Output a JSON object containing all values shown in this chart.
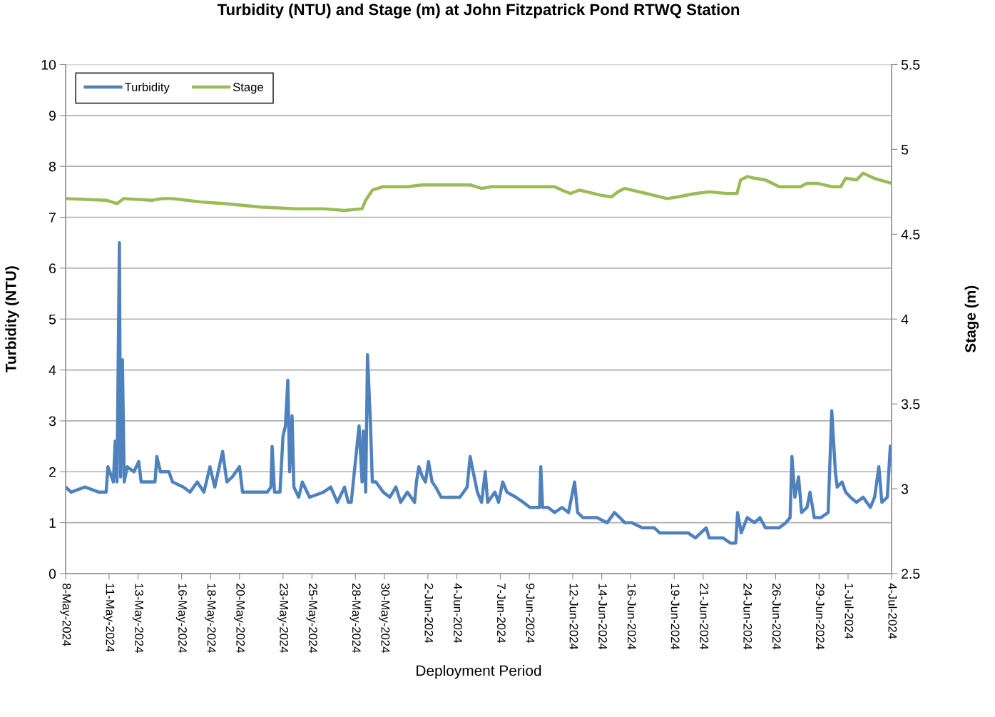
{
  "chart_data": {
    "type": "line",
    "title": "Turbidity (NTU) and Stage (m) at John Fitzpatrick Pond RTWQ Station",
    "xlabel": "Deployment Period",
    "ylabel": "Turbidity (NTU)",
    "y2label": "Stage (m)",
    "xlim": [
      "2024-05-08",
      "2024-07-04"
    ],
    "xticks": [
      {
        "value": "2024-05-08",
        "label": "8-May-2024"
      },
      {
        "value": "2024-05-11",
        "label": "11-May-2024"
      },
      {
        "value": "2024-05-13",
        "label": "13-May-2024"
      },
      {
        "value": "2024-05-16",
        "label": "16-May-2024"
      },
      {
        "value": "2024-05-18",
        "label": "18-May-2024"
      },
      {
        "value": "2024-05-20",
        "label": "20-May-2024"
      },
      {
        "value": "2024-05-23",
        "label": "23-May-2024"
      },
      {
        "value": "2024-05-25",
        "label": "25-May-2024"
      },
      {
        "value": "2024-05-28",
        "label": "28-May-2024"
      },
      {
        "value": "2024-05-30",
        "label": "30-May-2024"
      },
      {
        "value": "2024-06-02",
        "label": "2-Jun-2024"
      },
      {
        "value": "2024-06-04",
        "label": "4-Jun-2024"
      },
      {
        "value": "2024-06-07",
        "label": "7-Jun-2024"
      },
      {
        "value": "2024-06-09",
        "label": "9-Jun-2024"
      },
      {
        "value": "2024-06-12",
        "label": "12-Jun-2024"
      },
      {
        "value": "2024-06-14",
        "label": "14-Jun-2024"
      },
      {
        "value": "2024-06-16",
        "label": "16-Jun-2024"
      },
      {
        "value": "2024-06-19",
        "label": "19-Jun-2024"
      },
      {
        "value": "2024-06-21",
        "label": "21-Jun-2024"
      },
      {
        "value": "2024-06-24",
        "label": "24-Jun-2024"
      },
      {
        "value": "2024-06-26",
        "label": "26-Jun-2024"
      },
      {
        "value": "2024-06-29",
        "label": "29-Jun-2024"
      },
      {
        "value": "2024-07-01",
        "label": "1-Jul-2024"
      },
      {
        "value": "2024-07-04",
        "label": "4-Jul-2024"
      }
    ],
    "ylim": [
      0,
      10
    ],
    "yticks": [
      0,
      1,
      2,
      3,
      4,
      5,
      6,
      7,
      8,
      9,
      10
    ],
    "y2lim": [
      2.5,
      5.5
    ],
    "y2ticks": [
      2.5,
      3,
      3.5,
      4,
      4.5,
      5,
      5.5
    ],
    "grid": "y",
    "legend": "top left",
    "marker": "none",
    "line_style": "solid",
    "series": [
      {
        "name": "Turbidity",
        "color": "#4f81bd",
        "axis": "y",
        "x": [
          "2024-05-08T00:00",
          "2024-05-08T09:00",
          "2024-05-09T08:00",
          "2024-05-10T07:00",
          "2024-05-10T19:00",
          "2024-05-10T22:00",
          "2024-05-11T07:00",
          "2024-05-11T10:00",
          "2024-05-11T13:00",
          "2024-05-11T17:00",
          "2024-05-11T19:00",
          "2024-05-11T22:00",
          "2024-05-12T01:00",
          "2024-05-12T06:00",
          "2024-05-12T17:00",
          "2024-05-13T01:00",
          "2024-05-13T05:00",
          "2024-05-14T04:00",
          "2024-05-14T07:00",
          "2024-05-14T13:00",
          "2024-05-15T03:00",
          "2024-05-15T09:00",
          "2024-05-16T03:00",
          "2024-05-16T14:00",
          "2024-05-17T02:00",
          "2024-05-17T13:00",
          "2024-05-17T23:00",
          "2024-05-18T07:00",
          "2024-05-18T20:00",
          "2024-05-19T03:00",
          "2024-05-19T12:00",
          "2024-05-20T00:00",
          "2024-05-20T05:00",
          "2024-05-20T23:00",
          "2024-05-21T22:00",
          "2024-05-22T04:00",
          "2024-05-22T06:00",
          "2024-05-22T10:00",
          "2024-05-22T19:00",
          "2024-05-23T00:00",
          "2024-05-23T04:00",
          "2024-05-23T08:00",
          "2024-05-23T11:00",
          "2024-05-23T15:00",
          "2024-05-23T18:00",
          "2024-05-24T02:00",
          "2024-05-24T08:00",
          "2024-05-24T20:00",
          "2024-05-25T19:00",
          "2024-05-26T07:00",
          "2024-05-26T18:00",
          "2024-05-27T06:00",
          "2024-05-27T12:00",
          "2024-05-27T17:00",
          "2024-05-28T06:00",
          "2024-05-28T11:00",
          "2024-05-28T13:00",
          "2024-05-28T17:00",
          "2024-05-28T20:00",
          "2024-05-29T01:00",
          "2024-05-29T04:00",
          "2024-05-29T10:00",
          "2024-05-29T22:00",
          "2024-05-30T09:00",
          "2024-05-30T19:00",
          "2024-05-31T03:00",
          "2024-05-31T14:00",
          "2024-06-01T02:00",
          "2024-06-01T05:00",
          "2024-06-01T09:00",
          "2024-06-01T15:00",
          "2024-06-01T20:00",
          "2024-06-02T01:00",
          "2024-06-02T07:00",
          "2024-06-02T13:00",
          "2024-06-02T22:00",
          "2024-06-03T06:00",
          "2024-06-03T18:00",
          "2024-06-04T05:00",
          "2024-06-04T17:00",
          "2024-06-04T22:00",
          "2024-06-05T03:00",
          "2024-06-05T10:00",
          "2024-06-05T17:00",
          "2024-06-05T23:00",
          "2024-06-06T03:00",
          "2024-06-06T15:00",
          "2024-06-06T21:00",
          "2024-06-07T04:00",
          "2024-06-07T11:00",
          "2024-06-08T02:00",
          "2024-06-08T14:00",
          "2024-06-09T01:00",
          "2024-06-09T17:00",
          "2024-06-09T19:00",
          "2024-06-09T22:00",
          "2024-06-10T07:00",
          "2024-06-10T18:00",
          "2024-06-11T06:00",
          "2024-06-11T17:00",
          "2024-06-12T03:00",
          "2024-06-12T08:00",
          "2024-06-12T17:00",
          "2024-06-13T16:00",
          "2024-06-14T09:00",
          "2024-06-14T21:00",
          "2024-06-15T06:00",
          "2024-06-15T14:00",
          "2024-06-16T02:00",
          "2024-06-16T19:00",
          "2024-06-17T15:00",
          "2024-06-18T00:00",
          "2024-06-19T00:00",
          "2024-06-19T23:00",
          "2024-06-20T11:00",
          "2024-06-21T05:00",
          "2024-06-21T10:00",
          "2024-06-22T09:00",
          "2024-06-22T21:00",
          "2024-06-23T06:00",
          "2024-06-23T09:00",
          "2024-06-23T15:00",
          "2024-06-24T01:00",
          "2024-06-24T13:00",
          "2024-06-24T22:00",
          "2024-06-25T07:00",
          "2024-06-25T18:00",
          "2024-06-26T06:00",
          "2024-06-26T17:00",
          "2024-06-27T00:00",
          "2024-06-27T03:00",
          "2024-06-27T08:00",
          "2024-06-27T14:00",
          "2024-06-27T19:00",
          "2024-06-28T04:00",
          "2024-06-28T09:00",
          "2024-06-28T16:00",
          "2024-06-29T03:00",
          "2024-06-29T15:00",
          "2024-06-29T21:00",
          "2024-06-30T03:00",
          "2024-06-30T06:00",
          "2024-06-30T14:00",
          "2024-06-30T20:00",
          "2024-07-01T04:00",
          "2024-07-01T14:00",
          "2024-07-02T01:00",
          "2024-07-02T13:00",
          "2024-07-02T20:00",
          "2024-07-03T03:00",
          "2024-07-03T08:00",
          "2024-07-03T17:00",
          "2024-07-03T22:00"
        ],
        "values": [
          1.7,
          1.6,
          1.7,
          1.6,
          1.6,
          2.1,
          1.8,
          2.6,
          1.8,
          6.5,
          1.9,
          4.2,
          1.8,
          2.1,
          2.0,
          2.2,
          1.8,
          1.8,
          2.3,
          2.0,
          2.0,
          1.8,
          1.7,
          1.6,
          1.8,
          1.6,
          2.1,
          1.7,
          2.4,
          1.8,
          1.9,
          2.1,
          1.6,
          1.6,
          1.6,
          1.7,
          2.5,
          1.6,
          1.6,
          2.7,
          2.9,
          3.8,
          2.0,
          3.1,
          1.7,
          1.5,
          1.8,
          1.5,
          1.6,
          1.7,
          1.4,
          1.7,
          1.4,
          1.4,
          2.9,
          1.8,
          2.8,
          1.6,
          4.3,
          2.9,
          1.8,
          1.8,
          1.6,
          1.5,
          1.7,
          1.4,
          1.6,
          1.4,
          1.8,
          2.1,
          1.9,
          1.8,
          2.2,
          1.8,
          1.7,
          1.5,
          1.5,
          1.5,
          1.5,
          1.7,
          2.3,
          2.0,
          1.6,
          1.4,
          2.0,
          1.4,
          1.6,
          1.4,
          1.8,
          1.6,
          1.5,
          1.4,
          1.3,
          1.3,
          2.1,
          1.3,
          1.3,
          1.2,
          1.3,
          1.2,
          1.8,
          1.2,
          1.1,
          1.1,
          1.0,
          1.2,
          1.1,
          1.0,
          1.0,
          0.9,
          0.9,
          0.8,
          0.8,
          0.8,
          0.7,
          0.9,
          0.7,
          0.7,
          0.6,
          0.6,
          1.2,
          0.8,
          1.1,
          1.0,
          1.1,
          0.9,
          0.9,
          0.9,
          1.0,
          1.1,
          2.3,
          1.5,
          1.9,
          1.2,
          1.3,
          1.6,
          1.1,
          1.1,
          1.2,
          3.2,
          2.0,
          1.7,
          1.8,
          1.6,
          1.5,
          1.4,
          1.5,
          1.3,
          1.5,
          2.1,
          1.4,
          1.5,
          2.5
        ]
      },
      {
        "name": "Stage",
        "color": "#9bbb59",
        "axis": "y2",
        "x": [
          "2024-05-08T00:00",
          "2024-05-10T19:00",
          "2024-05-11T13:00",
          "2024-05-12T00:00",
          "2024-05-13T23:00",
          "2024-05-14T16:00",
          "2024-05-15T09:00",
          "2024-05-17T08:00",
          "2024-05-19T01:00",
          "2024-05-21T11:00",
          "2024-05-23T21:00",
          "2024-05-25T19:00",
          "2024-05-27T06:00",
          "2024-05-28T11:00",
          "2024-05-28T17:00",
          "2024-05-29T04:00",
          "2024-05-29T22:00",
          "2024-05-31T14:00",
          "2024-06-01T14:00",
          "2024-06-04T23:00",
          "2024-06-05T17:00",
          "2024-06-06T09:00",
          "2024-06-10T18:00",
          "2024-06-11T06:00",
          "2024-06-11T20:00",
          "2024-06-12T11:00",
          "2024-06-13T22:00",
          "2024-06-14T16:00",
          "2024-06-15T03:00",
          "2024-06-15T14:00",
          "2024-06-17T02:00",
          "2024-06-18T12:00",
          "2024-06-19T06:00",
          "2024-06-20T11:00",
          "2024-06-21T10:00",
          "2024-06-22T15:00",
          "2024-06-23T08:00",
          "2024-06-23T14:00",
          "2024-06-24T01:00",
          "2024-06-24T13:00",
          "2024-06-25T07:00",
          "2024-06-26T06:00",
          "2024-06-27T17:00",
          "2024-06-28T04:00",
          "2024-06-28T21:00",
          "2024-06-29T21:00",
          "2024-06-30T12:00",
          "2024-06-30T20:00",
          "2024-07-01T14:00",
          "2024-07-02T01:00",
          "2024-07-02T19:00",
          "2024-07-04T00:00"
        ],
        "values": [
          4.71,
          4.7,
          4.68,
          4.71,
          4.7,
          4.71,
          4.71,
          4.69,
          4.68,
          4.66,
          4.65,
          4.65,
          4.64,
          4.65,
          4.7,
          4.76,
          4.78,
          4.78,
          4.79,
          4.79,
          4.77,
          4.78,
          4.78,
          4.76,
          4.74,
          4.76,
          4.73,
          4.72,
          4.75,
          4.77,
          4.74,
          4.71,
          4.72,
          4.74,
          4.75,
          4.74,
          4.74,
          4.82,
          4.84,
          4.83,
          4.82,
          4.78,
          4.78,
          4.8,
          4.8,
          4.78,
          4.78,
          4.83,
          4.82,
          4.86,
          4.83,
          4.8
        ]
      }
    ]
  }
}
